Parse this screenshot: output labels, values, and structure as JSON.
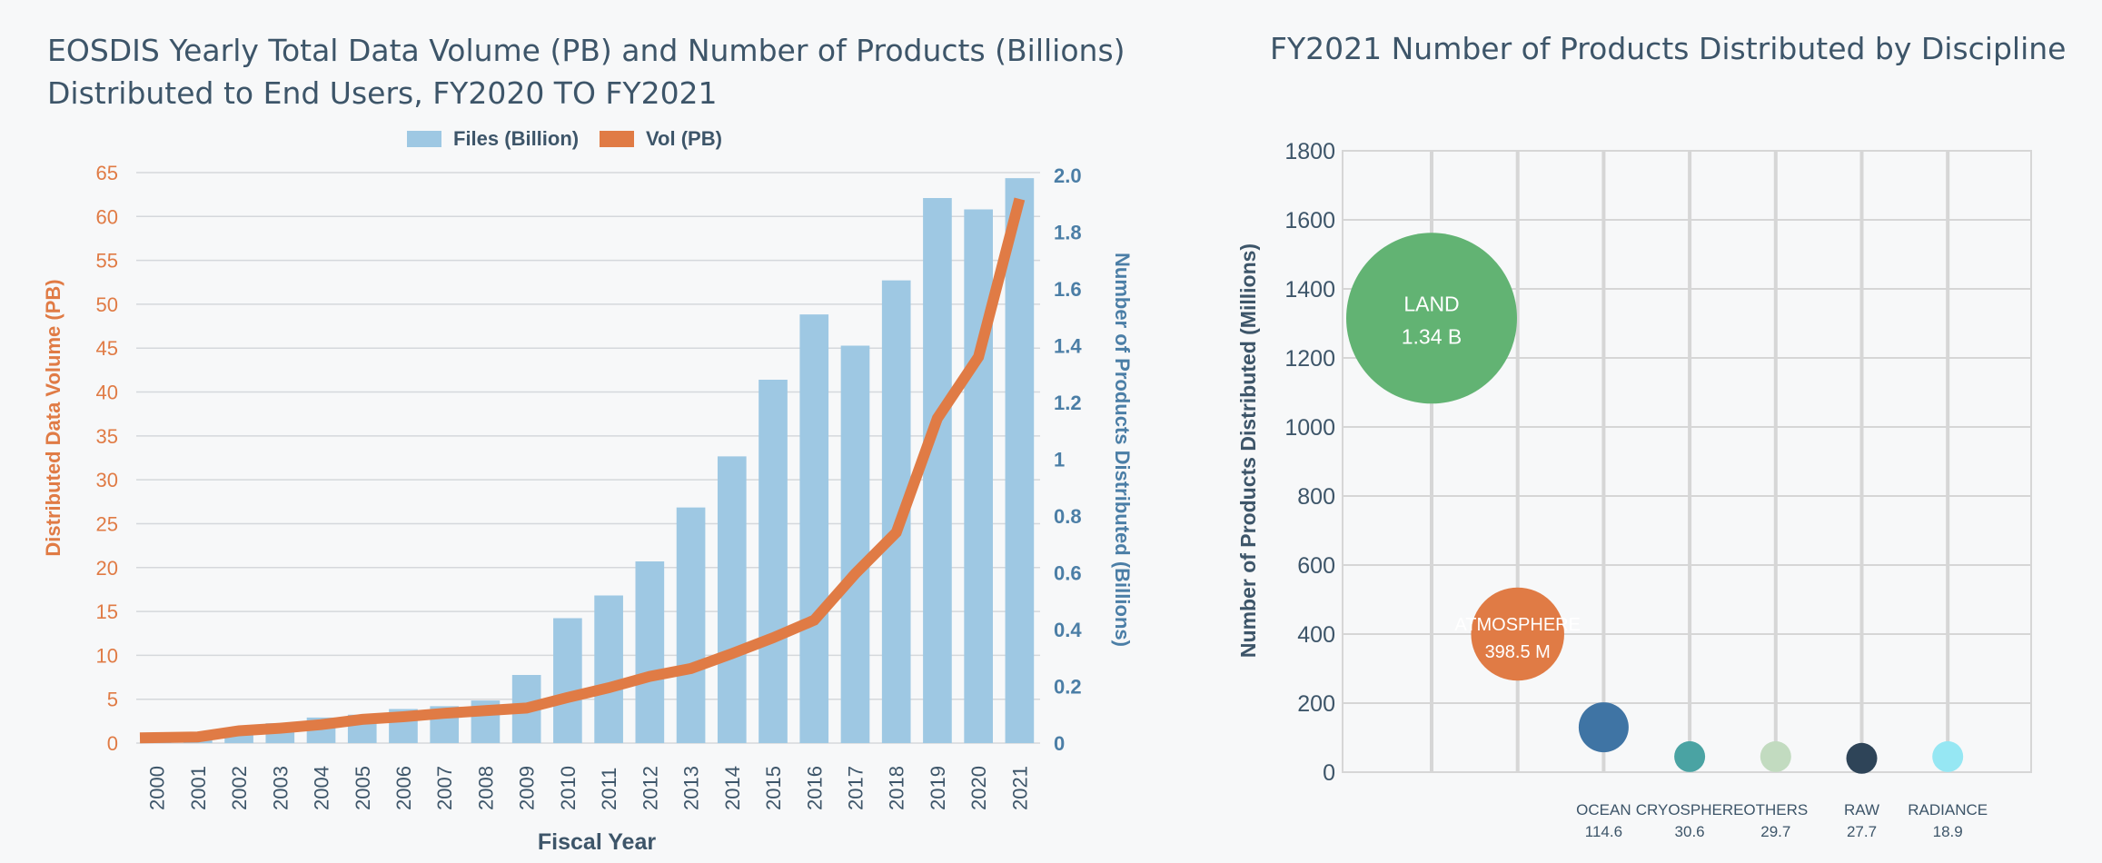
{
  "chart_data": [
    {
      "type": "bar+line",
      "title_line1": "EOSDIS Yearly Total Data Volume (PB) and Number of Products (Billions)",
      "title_line2": "Distributed to End Users, FY2020 TO FY2021",
      "xlabel": "Fiscal Year",
      "ylabel_left": "Distributed Data Volume (PB)",
      "ylabel_right": "Number of Products Distributed (Billions)",
      "legend_position": "top-center",
      "legend": [
        {
          "name": "Files (Billion)",
          "color": "#9ec8e3"
        },
        {
          "name": "Vol (PB)",
          "color": "#e07b45"
        }
      ],
      "categories": [
        "2000",
        "2001",
        "2002",
        "2003",
        "2004",
        "2005",
        "2006",
        "2007",
        "2008",
        "2009",
        "2010",
        "2011",
        "2012",
        "2013",
        "2014",
        "2015",
        "2016",
        "2017",
        "2018",
        "2019",
        "2020",
        "2021"
      ],
      "series": [
        {
          "name": "Files (Billion)",
          "axis": "right",
          "kind": "bar",
          "values": [
            0.01,
            0.02,
            0.05,
            0.07,
            0.09,
            0.1,
            0.12,
            0.13,
            0.15,
            0.24,
            0.44,
            0.52,
            0.64,
            0.83,
            1.01,
            1.28,
            1.51,
            1.4,
            1.63,
            1.92,
            1.88,
            1.99
          ]
        },
        {
          "name": "Vol (PB)",
          "axis": "left",
          "kind": "line",
          "values": [
            0.6,
            0.7,
            1.4,
            1.7,
            2.1,
            2.7,
            3.0,
            3.4,
            3.7,
            4.0,
            5.2,
            6.3,
            7.6,
            8.5,
            10.2,
            12.0,
            14.0,
            19.3,
            24.0,
            37.0,
            44.0,
            62.0
          ]
        }
      ],
      "ylim_left": [
        0,
        65
      ],
      "yticks_left": [
        "0",
        "5",
        "10",
        "15",
        "20",
        "25",
        "30",
        "35",
        "40",
        "45",
        "50",
        "55",
        "60",
        "65"
      ],
      "ylim_right": [
        0,
        2.0
      ],
      "yticks_right": [
        "0",
        "0.2",
        "0.4",
        "0.6",
        "0.8",
        "1",
        "1.2",
        "1.4",
        "1.6",
        "1.8",
        "2.0"
      ],
      "grid": true,
      "colors": {
        "left_axis": "#e07b45",
        "right_axis": "#4b7ea6",
        "grid": "#d5d8dc",
        "text": "#3d5569"
      }
    },
    {
      "type": "bubble",
      "title": "FY2021 Number of Products Distributed by Discipline",
      "ylabel": "Number of Products Distributed (Millions)",
      "ylim": [
        0,
        1800
      ],
      "yticks": [
        "0",
        "200",
        "400",
        "600",
        "800",
        "1000",
        "1200",
        "1400",
        "1600",
        "1800"
      ],
      "grid": true,
      "points": [
        {
          "name": "LAND",
          "value_label": "1.34 B",
          "y": 1315,
          "size": 1340,
          "color": "#62b373",
          "label_inside": true
        },
        {
          "name": "ATMOSPHERE",
          "value_label": "398.5 M",
          "y": 400,
          "size": 398.5,
          "color": "#e07b45",
          "label_inside": true
        },
        {
          "name": "OCEAN",
          "value_label": "114.6",
          "y": 130,
          "size": 114.6,
          "color": "#3f74a4",
          "label_inside": false
        },
        {
          "name": "CRYOSPHERE",
          "value_label": "30.6",
          "y": 45,
          "size": 30.6,
          "color": "#4aa3a3",
          "label_inside": false
        },
        {
          "name": "OTHERS",
          "value_label": "29.7",
          "y": 45,
          "size": 29.7,
          "color": "#c2dbc0",
          "label_inside": false
        },
        {
          "name": "RAW",
          "value_label": "27.7",
          "y": 40,
          "size": 27.7,
          "color": "#2e4458",
          "label_inside": false
        },
        {
          "name": "RADIANCE",
          "value_label": "18.9",
          "y": 45,
          "size": 18.9,
          "color": "#96e7f3",
          "label_inside": false
        }
      ]
    }
  ]
}
